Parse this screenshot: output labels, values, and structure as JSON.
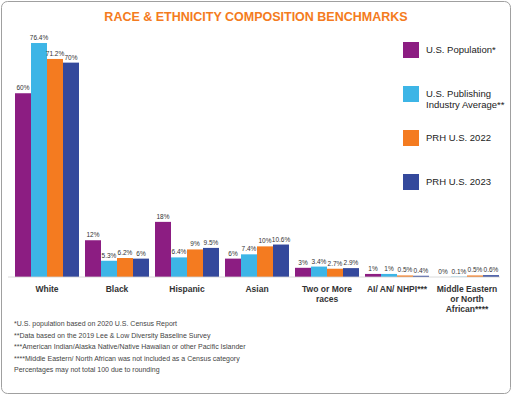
{
  "chart_data": {
    "type": "bar",
    "title": "RACE & ETHNICITY COMPOSITION BENCHMARKS",
    "categories": [
      "White",
      "Black",
      "Hispanic",
      "Asian",
      "Two or More races",
      "AI/ AN/ NHPI***",
      "Middle Eastern or North African****"
    ],
    "series": [
      {
        "name": "U.S. Population*",
        "color": "#8c1d82",
        "values": [
          60,
          12,
          18,
          6,
          3,
          1,
          0
        ],
        "value_labels": [
          "60%",
          "12%",
          "18%",
          "6%",
          "3%",
          "1%",
          "0%"
        ]
      },
      {
        "name": "U.S. Publishing Industry Average**",
        "color": "#3db5e6",
        "values": [
          76.4,
          5.3,
          6.4,
          7.4,
          3.4,
          1,
          0.1
        ],
        "value_labels": [
          "76.4%",
          "5.3%",
          "6.4%",
          "7.4%",
          "3.4%",
          "1%",
          "0.1%"
        ]
      },
      {
        "name": "PRH U.S. 2022",
        "color": "#f47b20",
        "values": [
          71.2,
          6.2,
          9,
          10,
          2.7,
          0.5,
          0.5
        ],
        "value_labels": [
          "71.2%",
          "6.2%",
          "9%",
          "10%",
          "2.7%",
          "0.5%",
          "0.5%"
        ]
      },
      {
        "name": "PRH U.S. 2023",
        "color": "#34499c",
        "values": [
          70,
          6,
          9.5,
          10.6,
          2.9,
          0.4,
          0.6
        ],
        "value_labels": [
          "70%",
          "6%",
          "9.5%",
          "10.6%",
          "2.9%",
          "0.4%",
          "0.6%"
        ]
      }
    ],
    "ylim": [
      0,
      80
    ],
    "grid": false,
    "legend": "top-right",
    "data_labels": true,
    "tick_labels": "x",
    "annotations": [
      "*U.S. population based on 2020 U.S. Census Report",
      "**Data based on the 2019 Lee & Low Diversity Baseline Survey",
      "***American Indian/Alaska Native/Native Hawaiian or other Pacific Islander",
      "****Middle Eastern/ North African was not included as a Census category",
      "Percentages may not total 100 due to rounding"
    ]
  }
}
